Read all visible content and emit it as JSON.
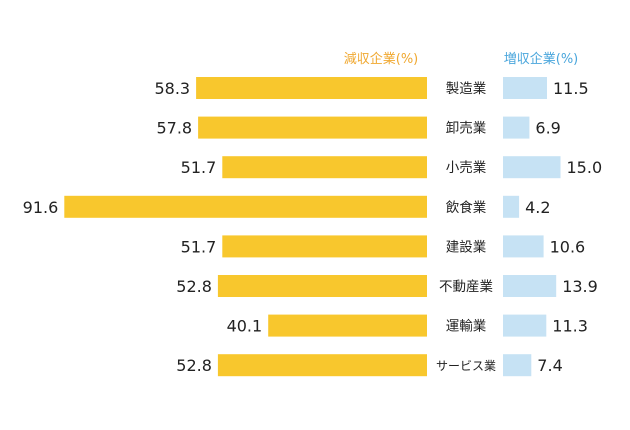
{
  "chart_data": {
    "type": "bar",
    "categories": [
      "製造業",
      "卸売業",
      "小売業",
      "飲食業",
      "建設業",
      "不動産業",
      "運輸業",
      "サービス業"
    ],
    "series": [
      {
        "name": "減収企業(%)",
        "values": [
          58.3,
          57.8,
          51.7,
          91.6,
          51.7,
          52.8,
          40.1,
          52.8
        ],
        "color": "#f8c72d"
      },
      {
        "name": "増収企業(%)",
        "values": [
          11.5,
          6.9,
          15.0,
          4.2,
          10.6,
          13.9,
          11.3,
          7.4
        ],
        "color": "#c6e2f4"
      }
    ],
    "orientation": "horizontal",
    "layout": "butterfly",
    "legend_colors": {
      "decrease": "#f0a830",
      "increase": "#4aa6dc"
    },
    "label_color": "#222222"
  }
}
